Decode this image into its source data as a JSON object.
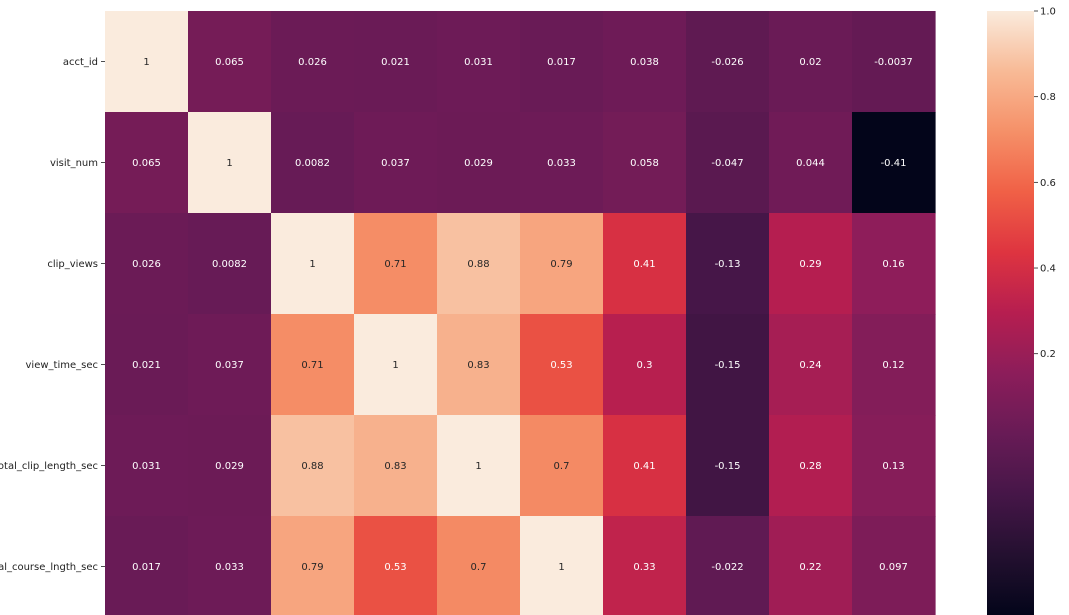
{
  "chart_data": {
    "type": "heatmap",
    "row_labels": [
      "acct_id",
      "visit_num",
      "clip_views",
      "view_time_sec",
      "total_clip_length_sec",
      "total_course_lngth_sec"
    ],
    "values": [
      [
        1,
        0.065,
        0.026,
        0.021,
        0.031,
        0.017,
        0.038,
        -0.026,
        0.02,
        -0.0037
      ],
      [
        0.065,
        1,
        0.0082,
        0.037,
        0.029,
        0.033,
        0.058,
        -0.047,
        0.044,
        -0.41
      ],
      [
        0.026,
        0.0082,
        1,
        0.71,
        0.88,
        0.79,
        0.41,
        -0.13,
        0.29,
        0.16
      ],
      [
        0.021,
        0.037,
        0.71,
        1,
        0.83,
        0.53,
        0.3,
        -0.15,
        0.24,
        0.12
      ],
      [
        0.031,
        0.029,
        0.88,
        0.83,
        1,
        0.7,
        0.41,
        -0.15,
        0.28,
        0.13
      ],
      [
        0.017,
        0.033,
        0.79,
        0.53,
        0.7,
        1,
        0.33,
        -0.022,
        0.22,
        0.097
      ]
    ],
    "cell_labels": [
      [
        "1",
        "0.065",
        "0.026",
        "0.021",
        "0.031",
        "0.017",
        "0.038",
        "-0.026",
        "0.02",
        "-0.0037"
      ],
      [
        "0.065",
        "1",
        "0.0082",
        "0.037",
        "0.029",
        "0.033",
        "0.058",
        "-0.047",
        "0.044",
        "-0.41"
      ],
      [
        "0.026",
        "0.0082",
        "1",
        "0.71",
        "0.88",
        "0.79",
        "0.41",
        "-0.13",
        "0.29",
        "0.16"
      ],
      [
        "0.021",
        "0.037",
        "0.71",
        "1",
        "0.83",
        "0.53",
        "0.3",
        "-0.15",
        "0.24",
        "0.12"
      ],
      [
        "0.031",
        "0.029",
        "0.88",
        "0.83",
        "1",
        "0.7",
        "0.41",
        "-0.15",
        "0.28",
        "0.13"
      ],
      [
        "0.017",
        "0.033",
        "0.79",
        "0.53",
        "0.7",
        "1",
        "0.33",
        "-0.022",
        "0.22",
        "0.097"
      ]
    ],
    "colorbar": {
      "colormap": "rocket",
      "range": [
        -0.41,
        1.0
      ],
      "ticks": [
        0.2,
        0.4,
        0.6,
        0.8,
        1.0
      ],
      "tick_labels": [
        "0.2",
        "0.4",
        "0.6",
        "0.8",
        "1.0"
      ]
    },
    "annotation_colors": {
      "on_dark": "#ffffff",
      "on_light": "#262626"
    }
  }
}
